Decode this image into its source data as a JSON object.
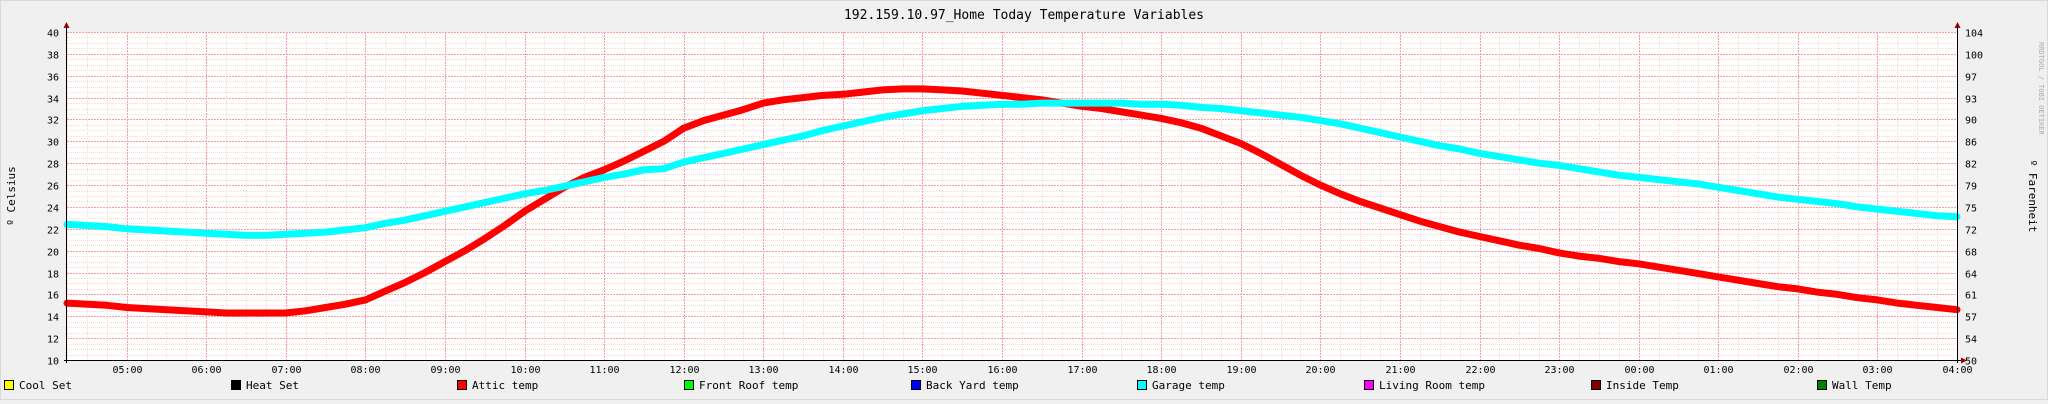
{
  "chart_data": {
    "type": "line",
    "title": "192.159.10.97_Home Today Temperature Variables",
    "ylabel": "º Celsius",
    "ylabel_right": "º Farenheit",
    "side_text": "RRDTOOL / TOBI OETIKER",
    "ylim": [
      10,
      40
    ],
    "y_ticks": [
      10,
      12,
      14,
      16,
      18,
      20,
      22,
      24,
      26,
      28,
      30,
      32,
      34,
      36,
      38,
      40
    ],
    "y_ticks_right": [
      "50",
      "54",
      "57",
      "61",
      "64",
      "68",
      "72",
      "75",
      "79",
      "82",
      "86",
      "90",
      "93",
      "97",
      "100",
      "104"
    ],
    "x_start": "04:15",
    "x_end": "04:00",
    "x_ticks": [
      "05:00",
      "06:00",
      "07:00",
      "08:00",
      "09:00",
      "10:00",
      "11:00",
      "12:00",
      "13:00",
      "14:00",
      "15:00",
      "16:00",
      "17:00",
      "18:00",
      "19:00",
      "20:00",
      "21:00",
      "22:00",
      "23:00",
      "00:00",
      "01:00",
      "02:00",
      "03:00",
      "04:00"
    ],
    "grid": true,
    "series": [
      {
        "name": "Attic temp",
        "color": "#ff0000",
        "x": [
          "04:15",
          "04:45",
          "05:00",
          "05:30",
          "06:00",
          "06:15",
          "06:30",
          "06:45",
          "07:00",
          "07:15",
          "07:30",
          "07:45",
          "08:00",
          "08:15",
          "08:30",
          "08:45",
          "09:00",
          "09:15",
          "09:30",
          "09:45",
          "10:00",
          "10:15",
          "10:30",
          "10:45",
          "11:00",
          "11:15",
          "11:30",
          "11:45",
          "12:00",
          "12:15",
          "12:30",
          "12:45",
          "13:00",
          "13:15",
          "13:30",
          "13:45",
          "14:00",
          "14:15",
          "14:30",
          "14:45",
          "15:00",
          "15:15",
          "15:30",
          "15:45",
          "16:00",
          "16:15",
          "16:30",
          "16:45",
          "17:00",
          "17:15",
          "17:30",
          "17:45",
          "18:00",
          "18:15",
          "18:30",
          "18:45",
          "19:00",
          "19:15",
          "19:30",
          "19:45",
          "20:00",
          "20:15",
          "20:30",
          "20:45",
          "21:00",
          "21:15",
          "21:30",
          "21:45",
          "22:00",
          "22:15",
          "22:30",
          "22:45",
          "23:00",
          "23:15",
          "23:30",
          "23:45",
          "00:00",
          "00:15",
          "00:30",
          "00:45",
          "01:00",
          "01:15",
          "01:30",
          "01:45",
          "02:00",
          "02:15",
          "02:30",
          "02:45",
          "03:00",
          "03:15",
          "03:30",
          "03:45",
          "04:00"
        ],
        "values": [
          15.2,
          15.0,
          14.8,
          14.6,
          14.4,
          14.3,
          14.3,
          14.3,
          14.3,
          14.5,
          14.8,
          15.1,
          15.5,
          16.3,
          17.1,
          18.0,
          19.0,
          20.0,
          21.1,
          22.3,
          23.6,
          24.7,
          25.8,
          26.7,
          27.4,
          28.2,
          29.1,
          30.0,
          31.2,
          31.9,
          32.4,
          32.9,
          33.5,
          33.8,
          34.0,
          34.2,
          34.3,
          34.5,
          34.7,
          34.8,
          34.8,
          34.7,
          34.6,
          34.4,
          34.2,
          34.0,
          33.8,
          33.5,
          33.2,
          33.0,
          32.7,
          32.4,
          32.1,
          31.7,
          31.2,
          30.5,
          29.8,
          28.9,
          27.9,
          26.9,
          26.0,
          25.2,
          24.5,
          23.9,
          23.3,
          22.7,
          22.2,
          21.7,
          21.3,
          20.9,
          20.5,
          20.2,
          19.8,
          19.5,
          19.3,
          19.0,
          18.8,
          18.5,
          18.2,
          17.9,
          17.6,
          17.3,
          17.0,
          16.7,
          16.5,
          16.2,
          16.0,
          15.7,
          15.5,
          15.2,
          15.0,
          14.8,
          14.6
        ]
      },
      {
        "name": "Garage temp",
        "color": "#00ffff",
        "x": [
          "04:15",
          "04:45",
          "05:00",
          "05:30",
          "06:00",
          "06:15",
          "06:30",
          "06:45",
          "07:00",
          "07:15",
          "07:30",
          "07:45",
          "08:00",
          "08:15",
          "08:30",
          "08:45",
          "09:00",
          "09:15",
          "09:30",
          "09:45",
          "10:00",
          "10:15",
          "10:30",
          "10:45",
          "11:00",
          "11:15",
          "11:30",
          "11:45",
          "12:00",
          "12:15",
          "12:30",
          "12:45",
          "13:00",
          "13:15",
          "13:30",
          "13:45",
          "14:00",
          "14:15",
          "14:30",
          "14:45",
          "15:00",
          "15:15",
          "15:30",
          "15:45",
          "16:00",
          "16:15",
          "16:30",
          "16:45",
          "17:00",
          "17:15",
          "17:30",
          "17:45",
          "18:00",
          "18:15",
          "18:30",
          "18:45",
          "19:00",
          "19:15",
          "19:30",
          "19:45",
          "20:00",
          "20:15",
          "20:30",
          "20:45",
          "21:00",
          "21:15",
          "21:30",
          "21:45",
          "22:00",
          "22:15",
          "22:30",
          "22:45",
          "23:00",
          "23:15",
          "23:30",
          "23:45",
          "00:00",
          "00:15",
          "00:30",
          "00:45",
          "01:00",
          "01:15",
          "01:30",
          "01:45",
          "02:00",
          "02:15",
          "02:30",
          "02:45",
          "03:00",
          "03:15",
          "03:30",
          "03:45",
          "04:00"
        ],
        "values": [
          22.4,
          22.2,
          22.0,
          21.8,
          21.6,
          21.5,
          21.4,
          21.4,
          21.5,
          21.6,
          21.7,
          21.9,
          22.1,
          22.5,
          22.8,
          23.2,
          23.6,
          24.0,
          24.4,
          24.8,
          25.2,
          25.5,
          25.9,
          26.3,
          26.7,
          27.0,
          27.4,
          27.5,
          28.1,
          28.5,
          28.9,
          29.3,
          29.7,
          30.1,
          30.5,
          31.0,
          31.4,
          31.8,
          32.2,
          32.5,
          32.8,
          33.0,
          33.2,
          33.3,
          33.4,
          33.4,
          33.5,
          33.5,
          33.5,
          33.5,
          33.5,
          33.4,
          33.4,
          33.3,
          33.1,
          33.0,
          32.8,
          32.6,
          32.4,
          32.2,
          31.9,
          31.6,
          31.2,
          30.8,
          30.4,
          30.0,
          29.6,
          29.3,
          28.9,
          28.6,
          28.3,
          28.0,
          27.8,
          27.5,
          27.2,
          26.9,
          26.7,
          26.5,
          26.3,
          26.1,
          25.8,
          25.5,
          25.2,
          24.9,
          24.7,
          24.5,
          24.3,
          24.0,
          23.8,
          23.6,
          23.4,
          23.2,
          23.1
        ]
      }
    ],
    "legend": [
      {
        "label": "Cool Set",
        "color": "#ffff00"
      },
      {
        "label": "Heat Set",
        "color": "#000000"
      },
      {
        "label": "Attic temp",
        "color": "#ff0000"
      },
      {
        "label": "Front Roof temp",
        "color": "#00ff00"
      },
      {
        "label": "Back Yard temp",
        "color": "#0000ff"
      },
      {
        "label": "Garage temp",
        "color": "#00ffff"
      },
      {
        "label": "Living Room temp",
        "color": "#ff00ff"
      },
      {
        "label": "Inside Temp",
        "color": "#800000"
      },
      {
        "label": "Wall Temp",
        "color": "#008000"
      }
    ],
    "colors": {
      "background": "#f0f0f0",
      "canvas": "#ffffff",
      "major_grid": "#ff9a9a",
      "minor_grid": "#ffd6d6",
      "axis": "#000000",
      "axis_arrow": "#990000",
      "text": "#000000"
    }
  }
}
